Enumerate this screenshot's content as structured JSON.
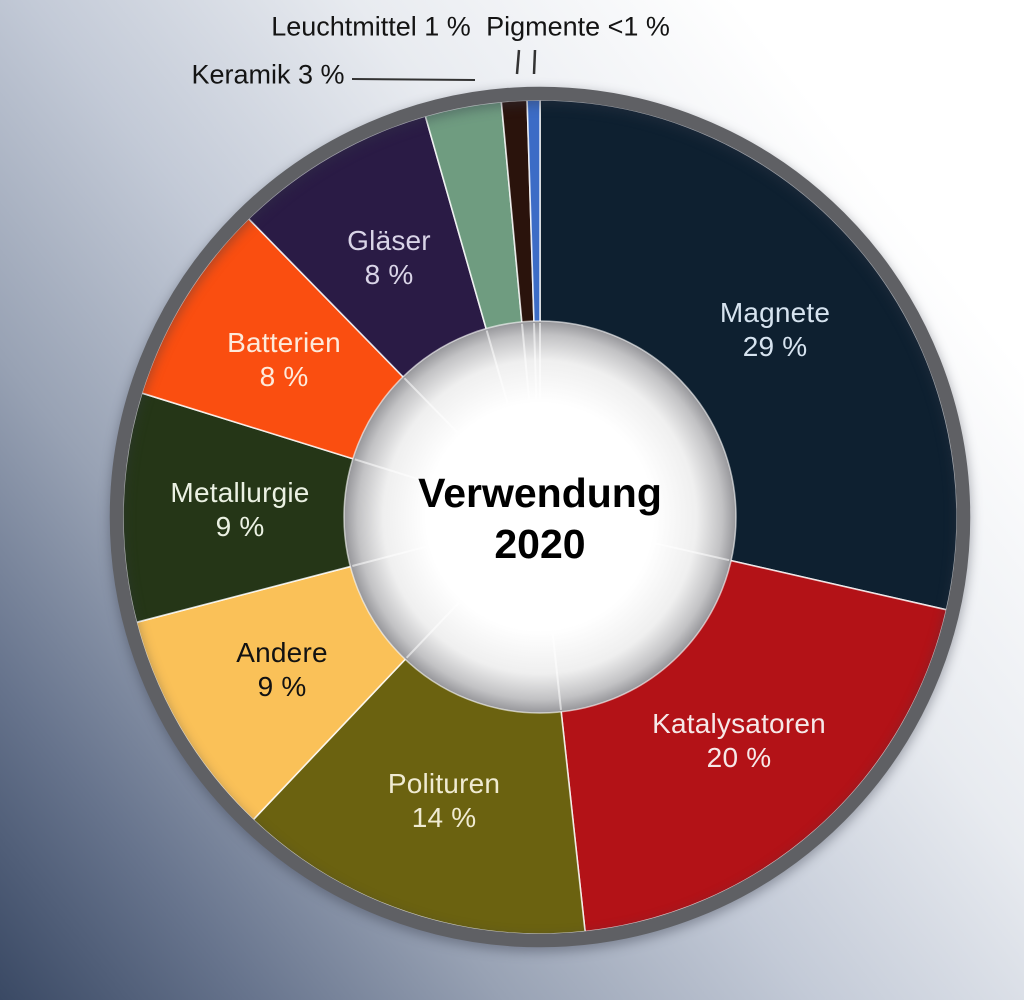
{
  "chart": {
    "center_title_line1": "Verwendung",
    "center_title_line2": "2020"
  },
  "chart_data": {
    "type": "pie",
    "subtype": "donut",
    "title": "Verwendung 2020",
    "start_angle_deg": 0,
    "direction": "clockwise",
    "legend_position": "none",
    "slices": [
      {
        "label": "Magnete",
        "value": 29,
        "value_text": "29 %",
        "color": "#0e2030",
        "label_color": "#d6e3ef",
        "placement": "inside"
      },
      {
        "label": "Katalysatoren",
        "value": 20,
        "value_text": "20 %",
        "color": "#b31217",
        "label_color": "#f6e8e8",
        "placement": "inside"
      },
      {
        "label": "Polituren",
        "value": 14,
        "value_text": "14 %",
        "color": "#6b6210",
        "label_color": "#f0ebd2",
        "placement": "inside"
      },
      {
        "label": "Andere",
        "value": 9,
        "value_text": "9 %",
        "color": "#fac158",
        "label_color": "#121212",
        "placement": "inside"
      },
      {
        "label": "Metallurgie",
        "value": 9,
        "value_text": "9 %",
        "color": "#253617",
        "label_color": "#ebf1e3",
        "placement": "inside"
      },
      {
        "label": "Batterien",
        "value": 8,
        "value_text": "8 %",
        "color": "#fa4e10",
        "label_color": "#fdeadb",
        "placement": "inside"
      },
      {
        "label": "Gläser",
        "value": 8,
        "value_text": "8 %",
        "color": "#2a1b45",
        "label_color": "#d9d4e7",
        "placement": "inside"
      },
      {
        "label": "Keramik",
        "value": 3,
        "value_text": "3 %",
        "color": "#6f9c80",
        "label_color": "#141414",
        "placement": "outside"
      },
      {
        "label": "Leuchtmittel",
        "value": 1,
        "value_text": "1 %",
        "color": "#2a130c",
        "label_color": "#141414",
        "placement": "outside"
      },
      {
        "label": "Pigmente",
        "value": 0.5,
        "value_text": "<1 %",
        "color": "#3c6cc6",
        "label_color": "#141414",
        "placement": "outside"
      }
    ],
    "colors": {
      "outer_ring": "#5f6064",
      "separator": "#ffffff",
      "center_fill": "#ffffff",
      "background_dark": "#3a4964",
      "background_light": "#ffffff"
    }
  }
}
